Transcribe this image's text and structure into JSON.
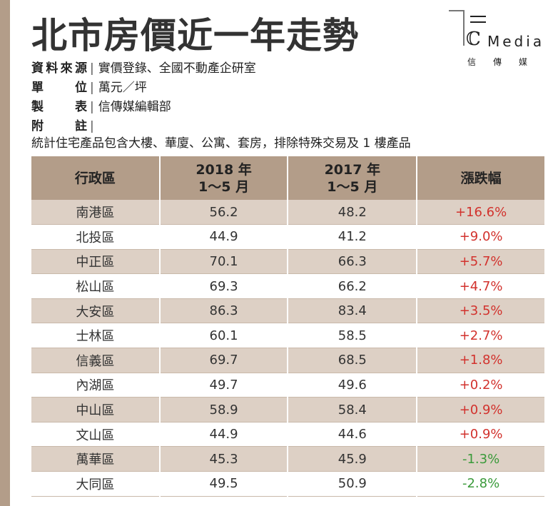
{
  "title": "北市房價近一年走勢",
  "logo": {
    "text": "Media",
    "cn": "信傳媒",
    "brand": "CM"
  },
  "meta": [
    {
      "label": "資料來源",
      "value": "實價登錄、全國不動產企研室"
    },
    {
      "label": "單位",
      "value": "萬元／坪"
    },
    {
      "label": "製表",
      "value": "信傳媒編輯部"
    },
    {
      "label": "附註",
      "value": "統計住宅產品包含大樓、華廈、公寓、套房，排除特殊交易及 1 樓產品"
    }
  ],
  "chart_data": {
    "type": "table",
    "title": "北市房價近一年走勢",
    "columns": [
      "行政區",
      "2018 年\n1～5 月",
      "2017 年\n1～5 月",
      "漲跌幅"
    ],
    "rows": [
      [
        "南港區",
        "56.2",
        "48.2",
        "+16.6%"
      ],
      [
        "北投區",
        "44.9",
        "41.2",
        "+9.0%"
      ],
      [
        "中正區",
        "70.1",
        "66.3",
        "+5.7%"
      ],
      [
        "松山區",
        "69.3",
        "66.2",
        "+4.7%"
      ],
      [
        "大安區",
        "86.3",
        "83.4",
        "+3.5%"
      ],
      [
        "士林區",
        "60.1",
        "58.5",
        "+2.7%"
      ],
      [
        "信義區",
        "69.7",
        "68.5",
        "+1.8%"
      ],
      [
        "內湖區",
        "49.7",
        "49.6",
        "+0.2%"
      ],
      [
        "中山區",
        "58.9",
        "58.4",
        "+0.9%"
      ],
      [
        "文山區",
        "44.9",
        "44.6",
        "+0.9%"
      ],
      [
        "萬華區",
        "45.3",
        "45.9",
        "-1.3%"
      ],
      [
        "大同區",
        "49.5",
        "50.9",
        "-2.8%"
      ]
    ]
  },
  "colors": {
    "header": "#b39d89",
    "row_alt": "#ddd0c5",
    "up": "#d2322d",
    "down": "#3a9a3a"
  }
}
